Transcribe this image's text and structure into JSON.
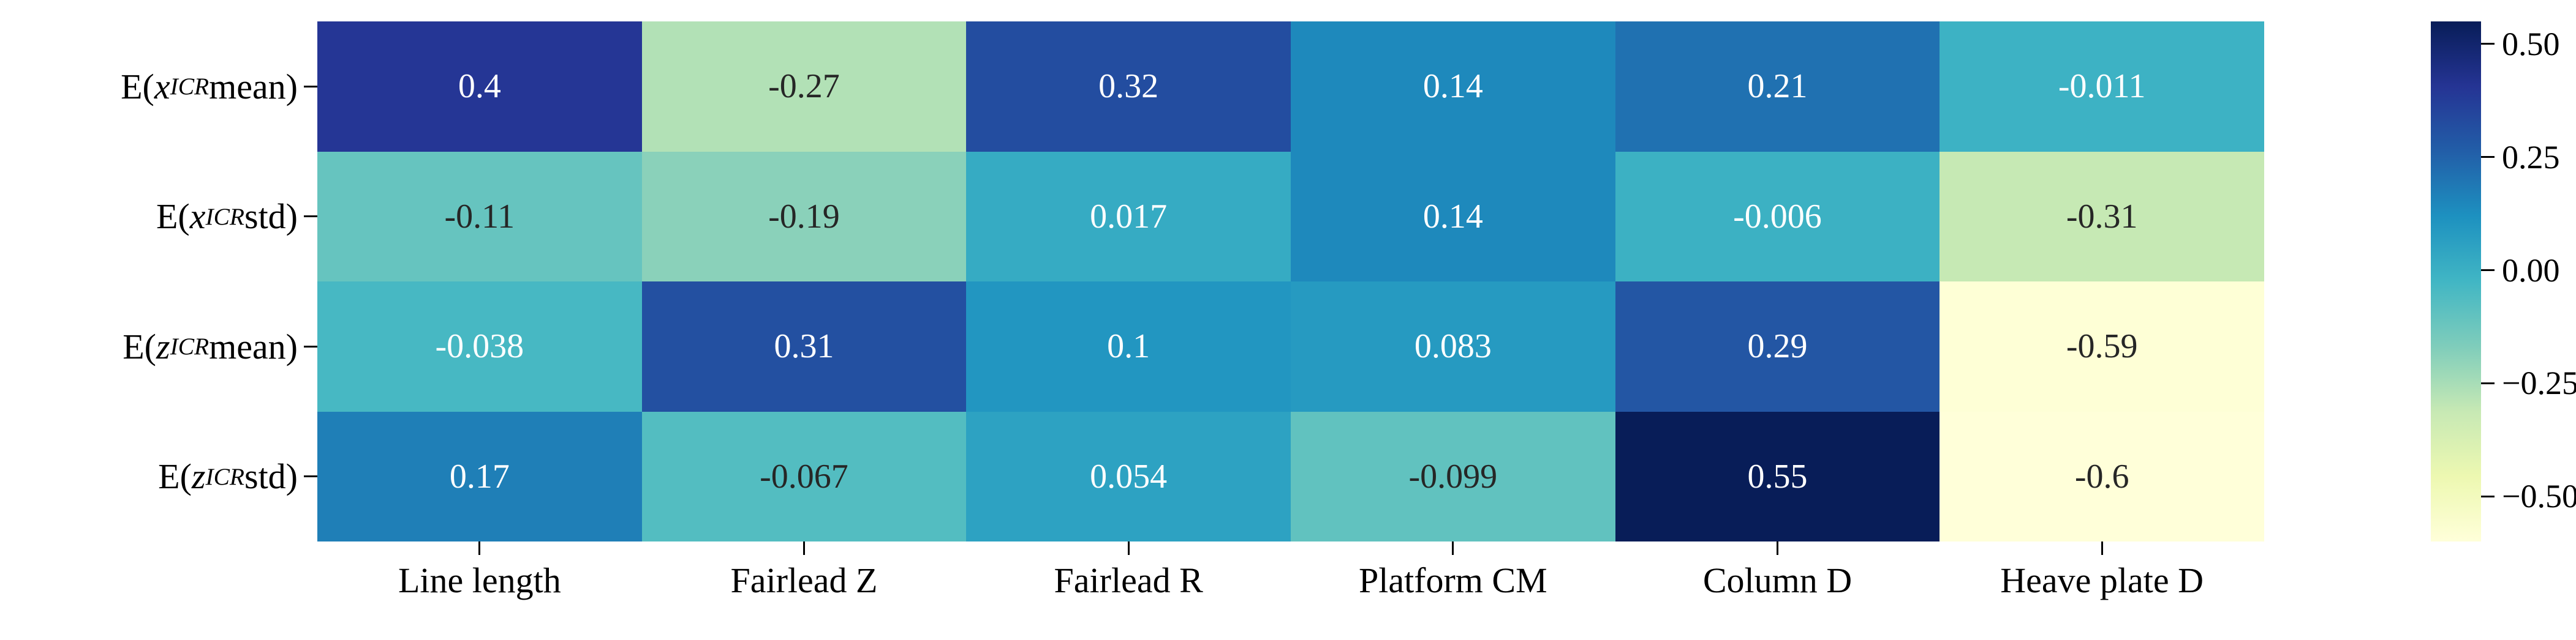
{
  "figure": {
    "background": "#ffffff",
    "tick_color": "#000000"
  },
  "chart_data": {
    "type": "heatmap",
    "title": "",
    "xlabel": "",
    "ylabel": "",
    "rows": [
      {
        "text": "E(x_ICR mean)",
        "pre": "E(",
        "var": "x",
        "sub": "ICR",
        "post": " mean)"
      },
      {
        "text": "E(x_ICR std)",
        "pre": "E(",
        "var": "x",
        "sub": "ICR",
        "post": " std)"
      },
      {
        "text": "E(z_ICR mean)",
        "pre": "E(",
        "var": "z",
        "sub": "ICR",
        "post": " mean)"
      },
      {
        "text": "E(z_ICR std)",
        "pre": "E(",
        "var": "z",
        "sub": "ICR",
        "post": " std)"
      }
    ],
    "columns": [
      "Line length",
      "Fairlead Z",
      "Fairlead R",
      "Platform CM",
      "Column D",
      "Heave plate D"
    ],
    "values": [
      [
        0.4,
        -0.27,
        0.32,
        0.14,
        0.21,
        -0.011
      ],
      [
        -0.11,
        -0.19,
        0.017,
        0.14,
        -0.006,
        -0.31
      ],
      [
        -0.038,
        0.31,
        0.1,
        0.083,
        0.29,
        -0.59
      ],
      [
        0.17,
        -0.067,
        0.054,
        -0.099,
        0.55,
        -0.6
      ]
    ],
    "cell_labels": [
      [
        "0.4",
        "-0.27",
        "0.32",
        "0.14",
        "0.21",
        "-0.011"
      ],
      [
        "-0.11",
        "-0.19",
        "0.017",
        "0.14",
        "-0.006",
        "-0.31"
      ],
      [
        "-0.038",
        "0.31",
        "0.1",
        "0.083",
        "0.29",
        "-0.59"
      ],
      [
        "0.17",
        "-0.067",
        "0.054",
        "-0.099",
        "0.55",
        "-0.6"
      ]
    ],
    "vmin": -0.6,
    "vmax": 0.55,
    "grid": false,
    "legend_position": "right-colorbar",
    "colormap": {
      "name": "YlGnBu",
      "stops": [
        {
          "t": 0.0,
          "color": "#ffffd9"
        },
        {
          "t": 0.125,
          "color": "#edf8b1"
        },
        {
          "t": 0.25,
          "color": "#c7e9b4"
        },
        {
          "t": 0.375,
          "color": "#7fcdbb"
        },
        {
          "t": 0.5,
          "color": "#41b6c4"
        },
        {
          "t": 0.625,
          "color": "#1d91c0"
        },
        {
          "t": 0.75,
          "color": "#225ea8"
        },
        {
          "t": 0.875,
          "color": "#253494"
        },
        {
          "t": 1.0,
          "color": "#081d58"
        }
      ]
    },
    "colorbar": {
      "ticks": [
        {
          "value": 0.5,
          "label": "0.50"
        },
        {
          "value": 0.25,
          "label": "0.25"
        },
        {
          "value": 0.0,
          "label": "0.00"
        },
        {
          "value": -0.25,
          "label": "−0.25"
        },
        {
          "value": -0.5,
          "label": "−0.50"
        }
      ]
    },
    "annotation_text_colors": {
      "light": "#ffffff",
      "dark": "#262626"
    }
  }
}
